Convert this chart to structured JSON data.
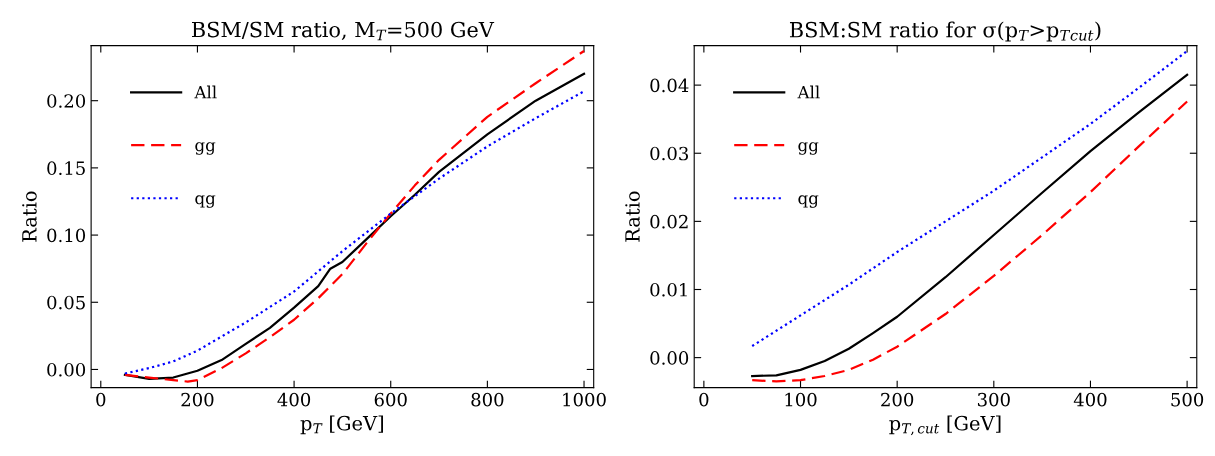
{
  "chart_data": [
    {
      "type": "line",
      "title": "BSM/SM ratio, M$_{T}$=500 GeV",
      "xlabel": "p$_{T}$ [GeV]",
      "ylabel": "Ratio",
      "xlim": [
        -20,
        1020
      ],
      "ylim": [
        -0.0135,
        0.241
      ],
      "xticks": [
        0,
        200,
        400,
        600,
        800,
        1000
      ],
      "yticks": [
        {
          "value": 0,
          "label": "0.00"
        },
        {
          "value": 0.05,
          "label": "0.05"
        },
        {
          "value": 0.1,
          "label": "0.10"
        },
        {
          "value": 0.15,
          "label": "0.15"
        },
        {
          "value": 0.2,
          "label": "0.20"
        }
      ],
      "legend": "top left",
      "grid": false,
      "series": [
        {
          "name": "All",
          "color": "#000000",
          "line_style": "solid",
          "x": [
            50,
            100,
            150,
            200,
            250,
            300,
            350,
            400,
            450,
            475,
            500,
            550,
            600,
            650,
            700,
            800,
            900,
            1000
          ],
          "values": [
            -0.004,
            -0.007,
            -0.006,
            -0.001,
            0.007,
            0.019,
            0.031,
            0.046,
            0.062,
            0.075,
            0.08,
            0.097,
            0.114,
            0.13,
            0.147,
            0.175,
            0.2,
            0.22
          ]
        },
        {
          "name": "gg",
          "color": "#ff0000",
          "line_style": "dashed",
          "x": [
            50,
            100,
            150,
            180,
            200,
            250,
            300,
            350,
            400,
            450,
            500,
            550,
            600,
            650,
            700,
            800,
            900,
            1000
          ],
          "values": [
            -0.004,
            -0.006,
            -0.008,
            -0.009,
            -0.008,
            0.001,
            0.012,
            0.024,
            0.037,
            0.053,
            0.071,
            0.094,
            0.116,
            0.137,
            0.156,
            0.188,
            0.213,
            0.237
          ]
        },
        {
          "name": "qg",
          "color": "#0000ff",
          "line_style": "dotted",
          "x": [
            50,
            100,
            150,
            200,
            300,
            400,
            500,
            600,
            700,
            800,
            900,
            1000
          ],
          "values": [
            -0.003,
            0.001,
            0.006,
            0.014,
            0.035,
            0.058,
            0.088,
            0.116,
            0.142,
            0.166,
            0.187,
            0.207
          ]
        }
      ]
    },
    {
      "type": "line",
      "title": "BSM:SM ratio for σ(p$_{T}$>p$_{T}$$_{cut}$)",
      "xlabel": "p$_{T,cut}$ [GeV]",
      "ylabel": "Ratio",
      "xlim": [
        -10,
        510
      ],
      "ylim": [
        -0.0044,
        0.0458
      ],
      "xticks": [
        0,
        100,
        200,
        300,
        400,
        500
      ],
      "yticks": [
        {
          "value": 0,
          "label": "0.00"
        },
        {
          "value": 0.01,
          "label": "0.01"
        },
        {
          "value": 0.02,
          "label": "0.02"
        },
        {
          "value": 0.03,
          "label": "0.03"
        },
        {
          "value": 0.04,
          "label": "0.04"
        }
      ],
      "legend": "top left",
      "grid": false,
      "series": [
        {
          "name": "All",
          "color": "#000000",
          "line_style": "solid",
          "x": [
            50,
            75,
            100,
            125,
            150,
            175,
            200,
            250,
            300,
            350,
            400,
            450,
            500
          ],
          "values": [
            -0.0027,
            -0.0026,
            -0.0018,
            -0.0005,
            0.0013,
            0.0036,
            0.006,
            0.0118,
            0.018,
            0.0242,
            0.0303,
            0.036,
            0.0415
          ]
        },
        {
          "name": "gg",
          "color": "#ff0000",
          "line_style": "dashed",
          "x": [
            50,
            75,
            100,
            125,
            150,
            175,
            200,
            250,
            300,
            350,
            400,
            450,
            500
          ],
          "values": [
            -0.0033,
            -0.0035,
            -0.0033,
            -0.0027,
            -0.0018,
            -0.0003,
            0.0016,
            0.0064,
            0.012,
            0.018,
            0.0243,
            0.031,
            0.0376
          ]
        },
        {
          "name": "qg",
          "color": "#0000ff",
          "line_style": "dotted",
          "x": [
            50,
            100,
            150,
            200,
            250,
            300,
            350,
            400,
            450,
            500
          ],
          "values": [
            0.0017,
            0.0062,
            0.0107,
            0.0155,
            0.02,
            0.0245,
            0.0294,
            0.0343,
            0.0396,
            0.045
          ]
        }
      ]
    }
  ]
}
